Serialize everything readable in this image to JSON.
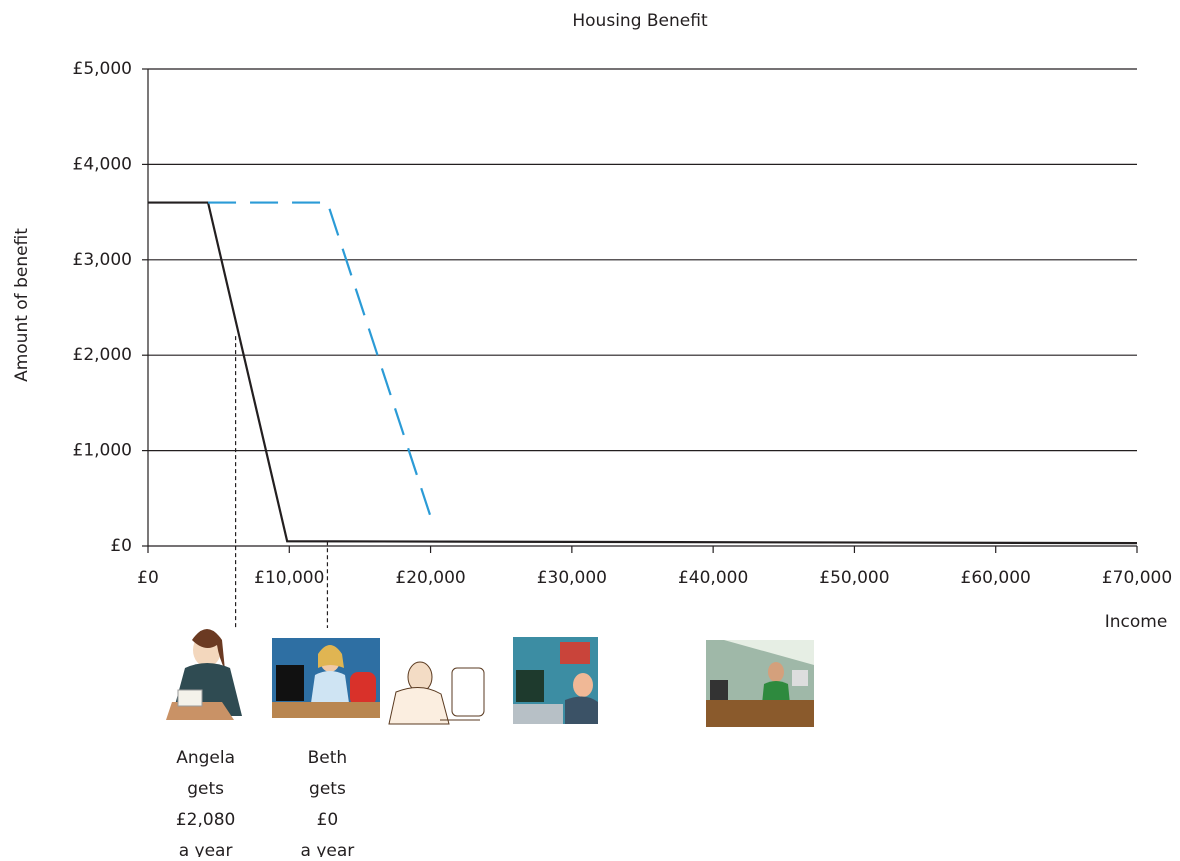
{
  "chart_data": {
    "type": "line",
    "title": "Housing Benefit",
    "x_label": "Income",
    "y_label": "Amount of benefit",
    "series": [
      {
        "color": "#231f20",
        "dashed": false,
        "x": [
          0,
          4250,
          9850,
          70000
        ],
        "values": [
          3600,
          3600,
          50,
          30
        ]
      },
      {
        "color": "#2b9bd6",
        "dashed": true,
        "x": [
          4250,
          12700,
          20150
        ],
        "values": [
          3600,
          3600,
          240
        ]
      }
    ],
    "xlim": [
      0,
      70000
    ],
    "xticks": [
      {
        "value": 0,
        "label": "£0"
      },
      {
        "value": 10000,
        "label": "£10,000"
      },
      {
        "value": 20000,
        "label": "£20,000"
      },
      {
        "value": 30000,
        "label": "£30,000"
      },
      {
        "value": 40000,
        "label": "£40,000"
      },
      {
        "value": 50000,
        "label": "£50,000"
      },
      {
        "value": 60000,
        "label": "£60,000"
      },
      {
        "value": 70000,
        "label": "£70,000"
      }
    ],
    "ylim": [
      0,
      5000
    ],
    "yticks": [
      {
        "value": 0,
        "label": "£0"
      },
      {
        "value": 1000,
        "label": "£1,000"
      },
      {
        "value": 2000,
        "label": "£2,000"
      },
      {
        "value": 3000,
        "label": "£3,000"
      },
      {
        "value": 4000,
        "label": "£4,000"
      },
      {
        "value": 5000,
        "label": "£5,000"
      }
    ],
    "grid": true,
    "annotations": [
      {
        "x": 6200,
        "y": 2200,
        "lines": [
          "Angela",
          "gets",
          "£2,080",
          "a year"
        ]
      },
      {
        "x": 12700,
        "y": 50,
        "lines": [
          "Beth",
          "gets",
          "£0",
          "a year"
        ]
      }
    ]
  }
}
